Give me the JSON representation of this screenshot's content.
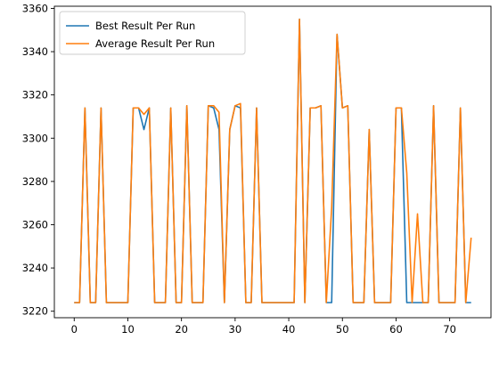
{
  "chart_data": {
    "type": "line",
    "title": "",
    "xlabel": "",
    "ylabel": "",
    "xlim": [
      -3.7,
      77.7
    ],
    "ylim": [
      3217,
      3361
    ],
    "x_ticks": [
      0,
      10,
      20,
      30,
      40,
      50,
      60,
      70
    ],
    "y_ticks": [
      3220,
      3240,
      3260,
      3280,
      3300,
      3320,
      3340,
      3360
    ],
    "grid": false,
    "legend_position": "upper-left",
    "x": [
      0,
      1,
      2,
      3,
      4,
      5,
      6,
      7,
      8,
      9,
      10,
      11,
      12,
      13,
      14,
      15,
      16,
      17,
      18,
      19,
      20,
      21,
      22,
      23,
      24,
      25,
      26,
      27,
      28,
      29,
      30,
      31,
      32,
      33,
      34,
      35,
      36,
      37,
      38,
      39,
      40,
      41,
      42,
      43,
      44,
      45,
      46,
      47,
      48,
      49,
      50,
      51,
      52,
      53,
      54,
      55,
      56,
      57,
      58,
      59,
      60,
      61,
      62,
      63,
      64,
      65,
      66,
      67,
      68,
      69,
      70,
      71,
      72,
      73,
      74
    ],
    "series": [
      {
        "name": "Best Result Per Run",
        "color": "#1f77b4",
        "values": [
          3224,
          3224,
          3314,
          3224,
          3224,
          3314,
          3224,
          3224,
          3224,
          3224,
          3224,
          3314,
          3314,
          3304,
          3314,
          3224,
          3224,
          3224,
          3314,
          3224,
          3224,
          3315,
          3224,
          3224,
          3224,
          3315,
          3314,
          3304,
          3224,
          3304,
          3315,
          3314,
          3224,
          3224,
          3314,
          3224,
          3224,
          3224,
          3224,
          3224,
          3224,
          3224,
          3355,
          3224,
          3314,
          3314,
          3315,
          3224,
          3224,
          3348,
          3314,
          3315,
          3224,
          3224,
          3224,
          3304,
          3224,
          3224,
          3224,
          3224,
          3314,
          3314,
          3224,
          3224,
          3224,
          3224,
          3224,
          3315,
          3224,
          3224,
          3224,
          3224,
          3314,
          3224,
          3224
        ]
      },
      {
        "name": "Average Result Per Run",
        "color": "#ff7f0e",
        "values": [
          3224,
          3224,
          3314,
          3224,
          3224,
          3314,
          3224,
          3224,
          3224,
          3224,
          3224,
          3314,
          3314,
          3311,
          3314,
          3224,
          3224,
          3224,
          3314,
          3224,
          3224,
          3315,
          3224,
          3224,
          3224,
          3315,
          3315,
          3312,
          3224,
          3304,
          3315,
          3316,
          3224,
          3224,
          3314,
          3224,
          3224,
          3224,
          3224,
          3224,
          3224,
          3224,
          3355,
          3224,
          3314,
          3314,
          3315,
          3224,
          3268,
          3348,
          3314,
          3315,
          3224,
          3224,
          3224,
          3304,
          3224,
          3224,
          3224,
          3224,
          3314,
          3314,
          3284,
          3224,
          3265,
          3224,
          3224,
          3315,
          3224,
          3224,
          3224,
          3224,
          3314,
          3224,
          3254
        ]
      }
    ]
  }
}
